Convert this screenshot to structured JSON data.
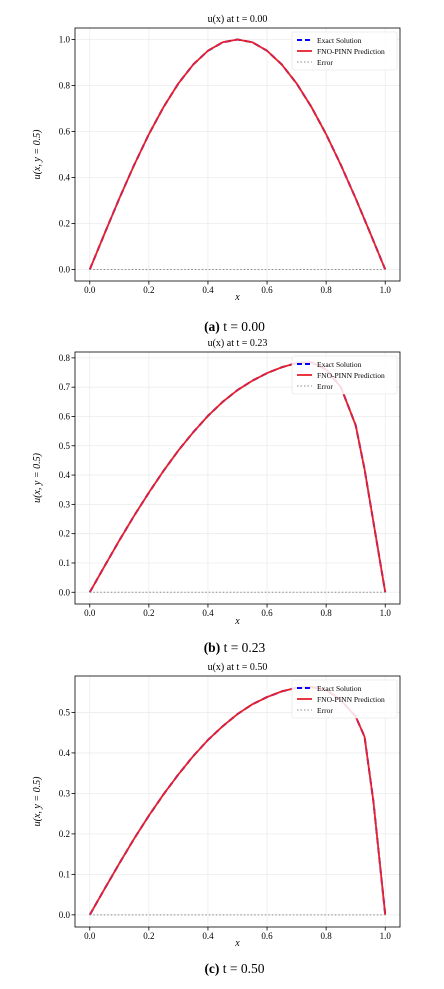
{
  "legend": {
    "exact": "Exact Solution",
    "pred": "FNO-PINN Prediction",
    "error": "Error"
  },
  "colors": {
    "exact": "#0000ff",
    "pred": "#e8202a",
    "error": "#8a8a8a",
    "grid": "#ececec"
  },
  "chart_data": [
    {
      "type": "line",
      "title": "u(x) at t = 0.00",
      "caption_letter": "(a)",
      "caption_text": "t = 0.00",
      "xlabel": "x",
      "ylabel": "u(x, y = 0.5)",
      "xlim": [
        -0.05,
        1.05
      ],
      "ylim": [
        -0.05,
        1.05
      ],
      "xticks": [
        0.0,
        0.2,
        0.4,
        0.6,
        0.8,
        1.0
      ],
      "yticks": [
        0.0,
        0.2,
        0.4,
        0.6,
        0.8,
        1.0
      ],
      "grid": true,
      "legend_position": "top-right",
      "series": [
        {
          "name": "Exact Solution",
          "style": "dashed",
          "x": [
            0,
            0.05,
            0.1,
            0.15,
            0.2,
            0.25,
            0.3,
            0.35,
            0.4,
            0.45,
            0.5,
            0.55,
            0.6,
            0.65,
            0.7,
            0.75,
            0.8,
            0.85,
            0.9,
            0.95,
            1.0
          ],
          "y": [
            0,
            0.156,
            0.309,
            0.454,
            0.588,
            0.707,
            0.809,
            0.891,
            0.951,
            0.988,
            1.0,
            0.988,
            0.951,
            0.891,
            0.809,
            0.707,
            0.588,
            0.454,
            0.309,
            0.156,
            0
          ]
        },
        {
          "name": "FNO-PINN Prediction",
          "style": "solid",
          "x": [
            0,
            0.05,
            0.1,
            0.15,
            0.2,
            0.25,
            0.3,
            0.35,
            0.4,
            0.45,
            0.5,
            0.55,
            0.6,
            0.65,
            0.7,
            0.75,
            0.8,
            0.85,
            0.9,
            0.95,
            1.0
          ],
          "y": [
            0,
            0.156,
            0.309,
            0.454,
            0.588,
            0.707,
            0.809,
            0.891,
            0.951,
            0.988,
            1.0,
            0.988,
            0.951,
            0.891,
            0.809,
            0.707,
            0.588,
            0.454,
            0.309,
            0.156,
            0
          ]
        },
        {
          "name": "Error",
          "style": "dotted",
          "x": [
            0,
            1.0
          ],
          "y": [
            0,
            0
          ]
        }
      ]
    },
    {
      "type": "line",
      "title": "u(x) at t = 0.23",
      "caption_letter": "(b)",
      "caption_text": "t = 0.23",
      "xlabel": "x",
      "ylabel": "u(x, y = 0.5)",
      "xlim": [
        -0.05,
        1.05
      ],
      "ylim": [
        -0.04,
        0.82
      ],
      "xticks": [
        0.0,
        0.2,
        0.4,
        0.6,
        0.8,
        1.0
      ],
      "yticks": [
        0.0,
        0.1,
        0.2,
        0.3,
        0.4,
        0.5,
        0.6,
        0.7,
        0.8
      ],
      "grid": true,
      "legend_position": "top-right",
      "series": [
        {
          "name": "Exact Solution",
          "style": "dashed",
          "x": [
            0,
            0.05,
            0.1,
            0.15,
            0.2,
            0.25,
            0.3,
            0.35,
            0.4,
            0.45,
            0.5,
            0.55,
            0.6,
            0.65,
            0.7,
            0.75,
            0.8,
            0.85,
            0.9,
            0.93,
            0.96,
            1.0
          ],
          "y": [
            0,
            0.089,
            0.177,
            0.261,
            0.34,
            0.415,
            0.484,
            0.546,
            0.602,
            0.65,
            0.69,
            0.722,
            0.748,
            0.768,
            0.782,
            0.785,
            0.76,
            0.7,
            0.57,
            0.42,
            0.24,
            0
          ]
        },
        {
          "name": "FNO-PINN Prediction",
          "style": "solid",
          "x": [
            0,
            0.05,
            0.1,
            0.15,
            0.2,
            0.25,
            0.3,
            0.35,
            0.4,
            0.45,
            0.5,
            0.55,
            0.6,
            0.65,
            0.7,
            0.75,
            0.8,
            0.85,
            0.9,
            0.93,
            0.96,
            1.0
          ],
          "y": [
            0,
            0.089,
            0.177,
            0.261,
            0.34,
            0.415,
            0.484,
            0.546,
            0.602,
            0.65,
            0.69,
            0.722,
            0.748,
            0.768,
            0.782,
            0.785,
            0.76,
            0.7,
            0.57,
            0.42,
            0.24,
            0
          ]
        },
        {
          "name": "Error",
          "style": "dotted",
          "x": [
            0,
            1.0
          ],
          "y": [
            0,
            0
          ]
        }
      ]
    },
    {
      "type": "line",
      "title": "u(x) at t = 0.50",
      "caption_letter": "(c)",
      "caption_text": "t = 0.50",
      "xlabel": "x",
      "ylabel": "u(x, y = 0.5)",
      "xlim": [
        -0.05,
        1.05
      ],
      "ylim": [
        -0.03,
        0.59
      ],
      "xticks": [
        0.0,
        0.2,
        0.4,
        0.6,
        0.8,
        1.0
      ],
      "yticks": [
        0.0,
        0.1,
        0.2,
        0.3,
        0.4,
        0.5
      ],
      "grid": true,
      "legend_position": "top-right",
      "series": [
        {
          "name": "Exact Solution",
          "style": "dashed",
          "x": [
            0,
            0.05,
            0.1,
            0.15,
            0.2,
            0.25,
            0.3,
            0.35,
            0.4,
            0.45,
            0.5,
            0.55,
            0.6,
            0.65,
            0.7,
            0.75,
            0.8,
            0.85,
            0.9,
            0.93,
            0.96,
            0.98,
            1.0
          ],
          "y": [
            0,
            0.064,
            0.127,
            0.188,
            0.245,
            0.298,
            0.347,
            0.392,
            0.432,
            0.466,
            0.496,
            0.52,
            0.538,
            0.552,
            0.561,
            0.563,
            0.556,
            0.53,
            0.49,
            0.44,
            0.28,
            0.14,
            0
          ]
        },
        {
          "name": "FNO-PINN Prediction",
          "style": "solid",
          "x": [
            0,
            0.05,
            0.1,
            0.15,
            0.2,
            0.25,
            0.3,
            0.35,
            0.4,
            0.45,
            0.5,
            0.55,
            0.6,
            0.65,
            0.7,
            0.75,
            0.8,
            0.85,
            0.9,
            0.93,
            0.96,
            0.98,
            1.0
          ],
          "y": [
            0,
            0.064,
            0.127,
            0.188,
            0.245,
            0.298,
            0.347,
            0.392,
            0.432,
            0.466,
            0.496,
            0.52,
            0.538,
            0.552,
            0.561,
            0.563,
            0.556,
            0.53,
            0.49,
            0.44,
            0.28,
            0.14,
            0
          ]
        },
        {
          "name": "Error",
          "style": "dotted",
          "x": [
            0,
            1.0
          ],
          "y": [
            0,
            0
          ]
        }
      ]
    }
  ]
}
